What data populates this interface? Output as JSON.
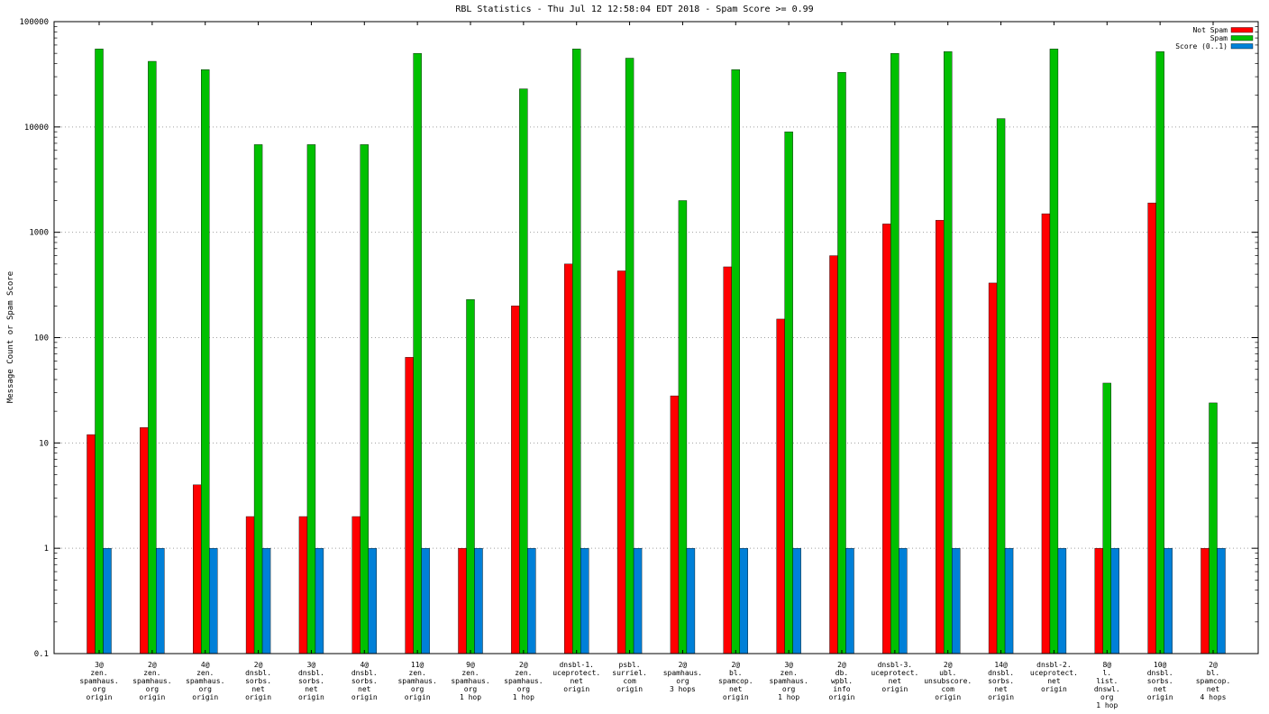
{
  "title": "RBL Statistics - Thu Jul 12 12:58:04 EDT 2018 - Spam Score >= 0.99",
  "chart_data": {
    "type": "bar",
    "yscale": "log",
    "grid": true,
    "legend_position": "top-right",
    "ylabel": "Message Count or Spam Score",
    "xlabel": "",
    "ylim": [
      0.1,
      100000
    ],
    "yticks": [
      0.1,
      1,
      10,
      100,
      1000,
      10000,
      100000
    ],
    "ytick_labels": [
      "0.1",
      "1",
      "10",
      "100",
      "1000",
      "10000",
      "100000"
    ],
    "categories": [
      [
        "3@",
        "zen.",
        "spamhaus.",
        "org",
        "origin"
      ],
      [
        "2@",
        "zen.",
        "spamhaus.",
        "org",
        "origin"
      ],
      [
        "4@",
        "zen.",
        "spamhaus.",
        "org",
        "origin"
      ],
      [
        "2@",
        "dnsbl.",
        "sorbs.",
        "net",
        "origin"
      ],
      [
        "3@",
        "dnsbl.",
        "sorbs.",
        "net",
        "origin"
      ],
      [
        "4@",
        "dnsbl.",
        "sorbs.",
        "net",
        "origin"
      ],
      [
        "11@",
        "zen.",
        "spamhaus.",
        "org",
        "origin"
      ],
      [
        "9@",
        "zen.",
        "spamhaus.",
        "org",
        "1 hop"
      ],
      [
        "2@",
        "zen.",
        "spamhaus.",
        "org",
        "1 hop"
      ],
      [
        "dnsbl-1.",
        "uceprotect.",
        "net",
        "origin"
      ],
      [
        "psbl.",
        "surriel.",
        "com",
        "origin"
      ],
      [
        "2@",
        "spamhaus.",
        "org",
        "3 hops"
      ],
      [
        "2@",
        "bl.",
        "spamcop.",
        "net",
        "origin"
      ],
      [
        "3@",
        "zen.",
        "spamhaus.",
        "org",
        "1 hop"
      ],
      [
        "2@",
        "db.",
        "wpbl.",
        "info",
        "origin"
      ],
      [
        "dnsbl-3.",
        "uceprotect.",
        "net",
        "origin"
      ],
      [
        "2@",
        "ubl.",
        "unsubscore.",
        "com",
        "origin"
      ],
      [
        "14@",
        "dnsbl.",
        "sorbs.",
        "net",
        "origin"
      ],
      [
        "dnsbl-2.",
        "uceprotect.",
        "net",
        "origin"
      ],
      [
        "8@",
        "l.",
        "list.",
        "dnswl.",
        "org",
        "1 hop"
      ],
      [
        "10@",
        "dnsbl.",
        "sorbs.",
        "net",
        "origin"
      ],
      [
        "2@",
        "bl.",
        "spamcop.",
        "net",
        "4 hops"
      ]
    ],
    "series": [
      {
        "name": "Not Spam",
        "color": "#ff0000",
        "values": [
          12,
          14,
          4,
          2,
          2,
          2,
          65,
          1,
          200,
          500,
          430,
          28,
          470,
          150,
          600,
          1200,
          1300,
          330,
          1500,
          1,
          1900,
          1
        ]
      },
      {
        "name": "Spam",
        "color": "#00c000",
        "values": [
          55000,
          42000,
          35000,
          6800,
          6800,
          6800,
          50000,
          230,
          23000,
          55000,
          45000,
          2000,
          35000,
          9000,
          33000,
          50000,
          52000,
          12000,
          55000,
          37,
          52000,
          24
        ]
      },
      {
        "name": "Score (0..1)",
        "color": "#0080d8",
        "values": [
          1,
          1,
          1,
          1,
          1,
          1,
          1,
          1,
          1,
          1,
          1,
          1,
          1,
          1,
          1,
          1,
          1,
          1,
          1,
          1,
          1,
          1
        ]
      }
    ],
    "colors": {
      "grid": "#a0a0a0",
      "border": "#000000",
      "background": "#ffffff"
    }
  }
}
